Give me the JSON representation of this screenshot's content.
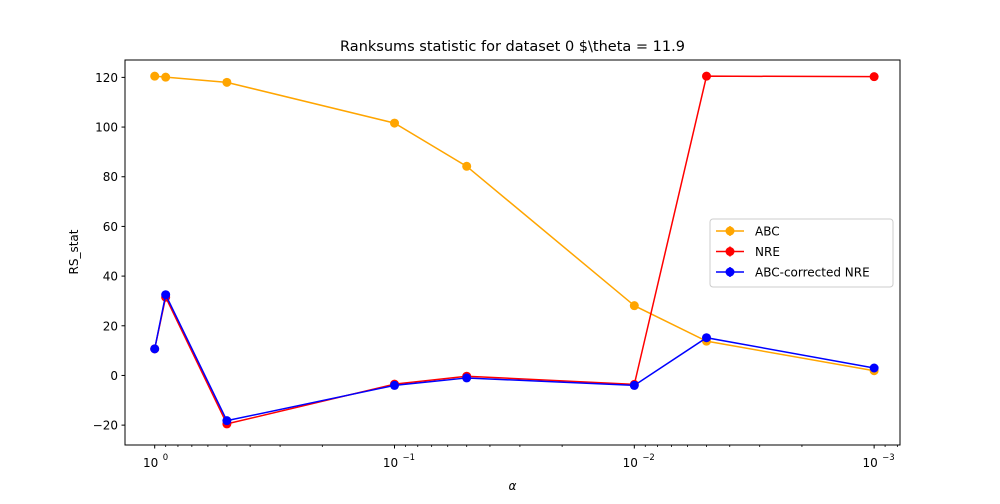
{
  "chart_data": {
    "type": "line",
    "title": "Ranksums statistic for dataset 0 $\\theta = 11.9",
    "xlabel": "α",
    "ylabel": "RS_stat",
    "xscale": "log",
    "x_inverted": true,
    "x": [
      1.0,
      0.9,
      0.5,
      0.1,
      0.05,
      0.01,
      0.005,
      0.001
    ],
    "xlim": [
      1.33,
      0.00078
    ],
    "ylim": [
      -28,
      127
    ],
    "xticks": [
      {
        "value": 1,
        "label": "10",
        "exp": "0"
      },
      {
        "value": 0.1,
        "label": "10",
        "exp": "−1"
      },
      {
        "value": 0.01,
        "label": "10",
        "exp": "−2"
      },
      {
        "value": 0.001,
        "label": "10",
        "exp": "−3"
      }
    ],
    "yticks": [
      {
        "value": -20,
        "label": "−20"
      },
      {
        "value": 0,
        "label": "0"
      },
      {
        "value": 20,
        "label": "20"
      },
      {
        "value": 40,
        "label": "40"
      },
      {
        "value": 60,
        "label": "60"
      },
      {
        "value": 80,
        "label": "80"
      },
      {
        "value": 100,
        "label": "100"
      },
      {
        "value": 120,
        "label": "120"
      }
    ],
    "series": [
      {
        "name": "ABC",
        "color": "#ffa500",
        "values": [
          120.5,
          120.1,
          118.0,
          101.6,
          84.2,
          28.1,
          13.8,
          1.9
        ]
      },
      {
        "name": "NRE",
        "color": "#ff0000",
        "values": [
          10.7,
          31.5,
          -19.5,
          -3.5,
          -0.3,
          -3.6,
          120.5,
          120.3
        ]
      },
      {
        "name": "ABC-corrected NRE",
        "color": "#0000ff",
        "values": [
          10.7,
          32.5,
          -18.2,
          -4.0,
          -1.0,
          -4.0,
          15.2,
          3.0
        ]
      }
    ],
    "legend_position": "center-right",
    "grid": false
  }
}
